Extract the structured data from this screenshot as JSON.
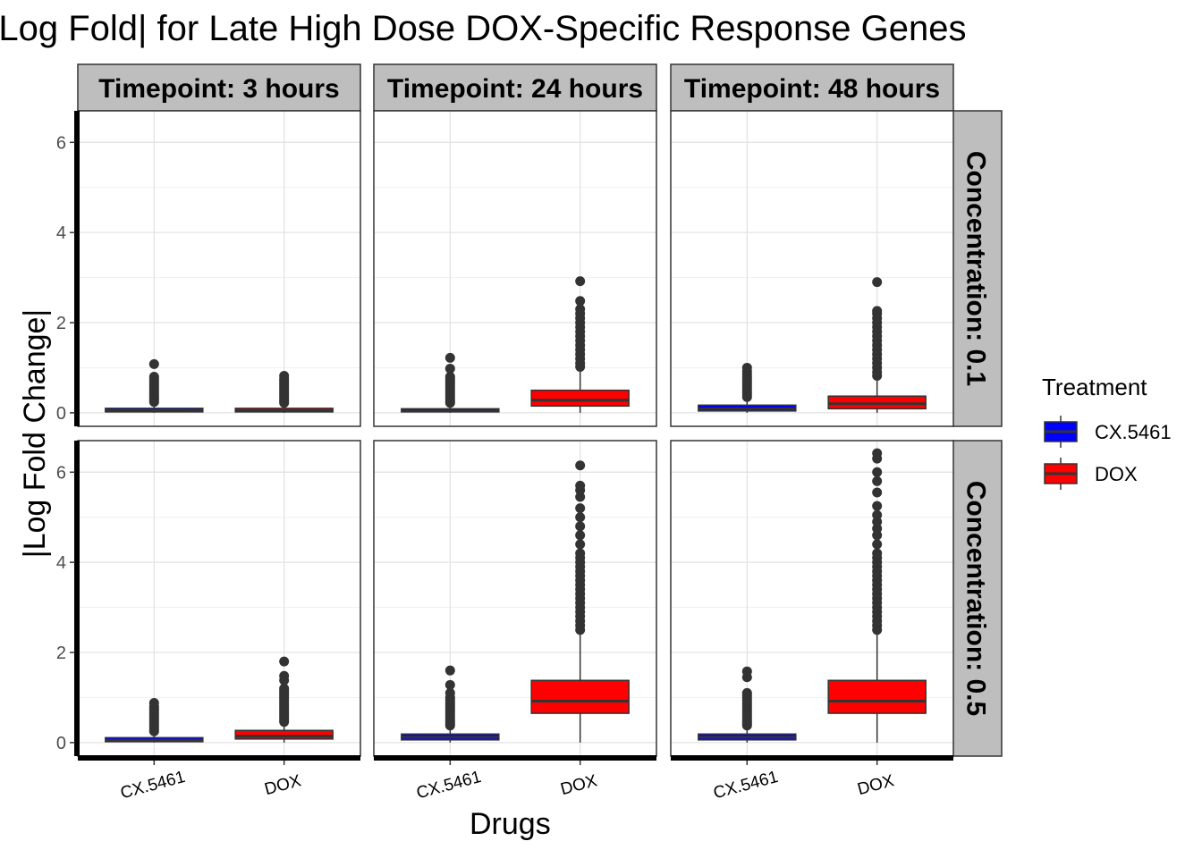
{
  "chart_data": {
    "type": "boxplot",
    "title": "|Log Fold| for Late High Dose DOX-Specific Response Genes",
    "xlabel": "Drugs",
    "ylabel": "|Log Fold Change|",
    "categories": [
      "CX.5461",
      "DOX"
    ],
    "ylim": [
      -0.3,
      6.7
    ],
    "yticks": [
      0,
      2,
      4,
      6
    ],
    "grid": true,
    "legend": {
      "title": "Treatment",
      "placement": "right",
      "entries": [
        {
          "name": "CX.5461",
          "color": "#0000ff"
        },
        {
          "name": "DOX",
          "color": "#ff0000"
        }
      ]
    },
    "facet_cols": [
      "Timepoint: 3 hours",
      "Timepoint: 24 hours",
      "Timepoint: 48 hours"
    ],
    "facet_rows": [
      "Concentration: 0.1",
      "Concentration: 0.5"
    ],
    "panels": [
      {
        "row": 0,
        "col": 0,
        "boxes": [
          {
            "category": "CX.5461",
            "min": 0,
            "q1": 0.02,
            "median": 0.05,
            "q3": 0.1,
            "max": 0.22,
            "outliers": [
              0.24,
              0.28,
              0.32,
              0.36,
              0.4,
              0.45,
              0.5,
              0.55,
              0.6,
              0.65,
              0.7,
              0.75,
              0.8,
              1.08
            ]
          },
          {
            "category": "DOX",
            "min": 0,
            "q1": 0.02,
            "median": 0.05,
            "q3": 0.1,
            "max": 0.2,
            "outliers": [
              0.22,
              0.26,
              0.3,
              0.35,
              0.4,
              0.45,
              0.5,
              0.55,
              0.6,
              0.65,
              0.7,
              0.75,
              0.82
            ]
          }
        ]
      },
      {
        "row": 0,
        "col": 1,
        "boxes": [
          {
            "category": "CX.5461",
            "min": 0,
            "q1": 0.02,
            "median": 0.04,
            "q3": 0.09,
            "max": 0.2,
            "outliers": [
              0.22,
              0.26,
              0.3,
              0.35,
              0.4,
              0.45,
              0.5,
              0.55,
              0.6,
              0.65,
              0.7,
              0.75,
              0.8,
              0.98,
              1.22
            ]
          },
          {
            "category": "DOX",
            "min": 0,
            "q1": 0.15,
            "median": 0.28,
            "q3": 0.5,
            "max": 0.98,
            "outliers": [
              1.02,
              1.1,
              1.2,
              1.3,
              1.4,
              1.5,
              1.6,
              1.7,
              1.8,
              1.9,
              2.0,
              2.1,
              2.2,
              2.3,
              2.48,
              2.92
            ]
          }
        ]
      },
      {
        "row": 0,
        "col": 2,
        "boxes": [
          {
            "category": "CX.5461",
            "min": 0,
            "q1": 0.04,
            "median": 0.09,
            "q3": 0.17,
            "max": 0.32,
            "outliers": [
              0.35,
              0.4,
              0.45,
              0.5,
              0.55,
              0.6,
              0.65,
              0.7,
              0.75,
              0.8,
              0.86,
              0.92,
              1.0
            ]
          },
          {
            "category": "DOX",
            "min": 0,
            "q1": 0.09,
            "median": 0.2,
            "q3": 0.37,
            "max": 0.78,
            "outliers": [
              0.82,
              0.9,
              1.0,
              1.1,
              1.2,
              1.3,
              1.4,
              1.5,
              1.6,
              1.7,
              1.8,
              1.9,
              2.0,
              2.1,
              2.2,
              2.26,
              2.9
            ]
          }
        ]
      },
      {
        "row": 1,
        "col": 0,
        "boxes": [
          {
            "category": "CX.5461",
            "min": 0,
            "q1": 0.02,
            "median": 0.05,
            "q3": 0.11,
            "max": 0.22,
            "outliers": [
              0.25,
              0.3,
              0.35,
              0.4,
              0.45,
              0.5,
              0.55,
              0.6,
              0.65,
              0.7,
              0.75,
              0.8,
              0.88
            ]
          },
          {
            "category": "DOX",
            "min": 0,
            "q1": 0.08,
            "median": 0.14,
            "q3": 0.27,
            "max": 0.42,
            "outliers": [
              0.46,
              0.5,
              0.55,
              0.6,
              0.65,
              0.7,
              0.75,
              0.8,
              0.85,
              0.9,
              0.95,
              1.0,
              1.05,
              1.1,
              1.15,
              1.2,
              1.38,
              1.48,
              1.8
            ]
          }
        ]
      },
      {
        "row": 1,
        "col": 1,
        "boxes": [
          {
            "category": "CX.5461",
            "min": 0,
            "q1": 0.06,
            "median": 0.12,
            "q3": 0.19,
            "max": 0.35,
            "outliers": [
              0.38,
              0.42,
              0.46,
              0.5,
              0.55,
              0.6,
              0.65,
              0.7,
              0.75,
              0.8,
              0.85,
              0.9,
              0.95,
              1.0,
              1.1,
              1.28,
              1.6
            ]
          },
          {
            "category": "DOX",
            "min": 0,
            "q1": 0.65,
            "median": 0.92,
            "q3": 1.38,
            "max": 2.45,
            "outliers": [
              2.5,
              2.6,
              2.7,
              2.8,
              2.9,
              3.0,
              3.1,
              3.2,
              3.3,
              3.4,
              3.5,
              3.6,
              3.7,
              3.8,
              3.9,
              4.0,
              4.1,
              4.2,
              4.4,
              4.6,
              4.8,
              5.0,
              5.2,
              5.45,
              5.6,
              5.7,
              6.15
            ]
          }
        ]
      },
      {
        "row": 1,
        "col": 2,
        "boxes": [
          {
            "category": "CX.5461",
            "min": 0,
            "q1": 0.06,
            "median": 0.12,
            "q3": 0.19,
            "max": 0.35,
            "outliers": [
              0.38,
              0.42,
              0.46,
              0.5,
              0.55,
              0.6,
              0.65,
              0.7,
              0.75,
              0.8,
              0.85,
              0.9,
              0.95,
              1.0,
              1.05,
              1.1,
              1.45,
              1.58
            ]
          },
          {
            "category": "DOX",
            "min": 0,
            "q1": 0.65,
            "median": 0.92,
            "q3": 1.38,
            "max": 2.45,
            "outliers": [
              2.5,
              2.6,
              2.7,
              2.8,
              2.9,
              3.0,
              3.1,
              3.2,
              3.3,
              3.4,
              3.5,
              3.6,
              3.7,
              3.8,
              3.9,
              4.0,
              4.1,
              4.2,
              4.4,
              4.6,
              4.75,
              4.9,
              5.05,
              5.25,
              5.55,
              5.8,
              6.0,
              6.3,
              6.42
            ]
          }
        ]
      }
    ]
  }
}
